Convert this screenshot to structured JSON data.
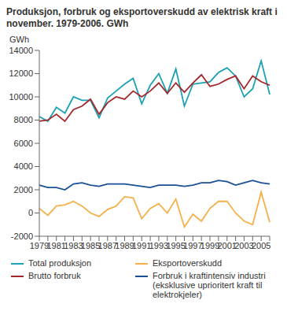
{
  "chart_data": {
    "type": "line",
    "title": "Produksjon, forbruk og eksportoverskudd av elektrisk kraft i november. 1979-2006. GWh",
    "y_label": "GWh",
    "categories": [
      "1979",
      null,
      "1981",
      null,
      "1983",
      null,
      "1985",
      null,
      "1987",
      null,
      "1989",
      null,
      "1991",
      null,
      "1993",
      null,
      "1995",
      null,
      "1997",
      null,
      "1999",
      null,
      "2001",
      null,
      "2003",
      null,
      "2005",
      null
    ],
    "series": [
      {
        "name": "Total produksjon",
        "color": "#1ba1b3",
        "values": [
          8300,
          7900,
          9100,
          8600,
          10000,
          9700,
          9700,
          8200,
          9900,
          10500,
          11100,
          11600,
          9400,
          11000,
          12000,
          10300,
          12400,
          9200,
          11100,
          11200,
          11300,
          12100,
          12500,
          11800,
          10000,
          10700,
          13100,
          10200
        ]
      },
      {
        "name": "Brutto forbruk",
        "color": "#a3282b",
        "values": [
          7900,
          8000,
          8500,
          7900,
          8900,
          9200,
          9800,
          8500,
          9500,
          10000,
          9800,
          10500,
          10000,
          10500,
          11200,
          10300,
          11200,
          10400,
          11200,
          11900,
          10900,
          11100,
          11500,
          11800,
          10700,
          11800,
          11300,
          11000
        ]
      },
      {
        "name": "Eksportoverskudd",
        "color": "#f5b04a",
        "values": [
          400,
          -200,
          600,
          700,
          1000,
          600,
          0,
          -300,
          300,
          600,
          1400,
          1300,
          -500,
          400,
          800,
          0,
          1200,
          -1200,
          -100,
          -700,
          400,
          1000,
          1000,
          0,
          -700,
          -1000,
          1800,
          -800
        ]
      },
      {
        "name": "Forbruk i kraftintensiv industri (eksklusive uprioritert kraft til elektrokjeler)",
        "color": "#1b4f96",
        "values": [
          2400,
          2200,
          2200,
          2000,
          2500,
          2600,
          2400,
          2300,
          2500,
          2500,
          2500,
          2400,
          2300,
          2200,
          2400,
          2400,
          2400,
          2300,
          2400,
          2600,
          2600,
          2800,
          2700,
          2400,
          2600,
          2800,
          2600,
          2500
        ]
      }
    ],
    "ylim": [
      -2000,
      14000
    ],
    "yticks": [
      -2000,
      0,
      2000,
      4000,
      6000,
      8000,
      10000,
      12000,
      14000
    ],
    "grid": false,
    "legend": "bottom"
  }
}
